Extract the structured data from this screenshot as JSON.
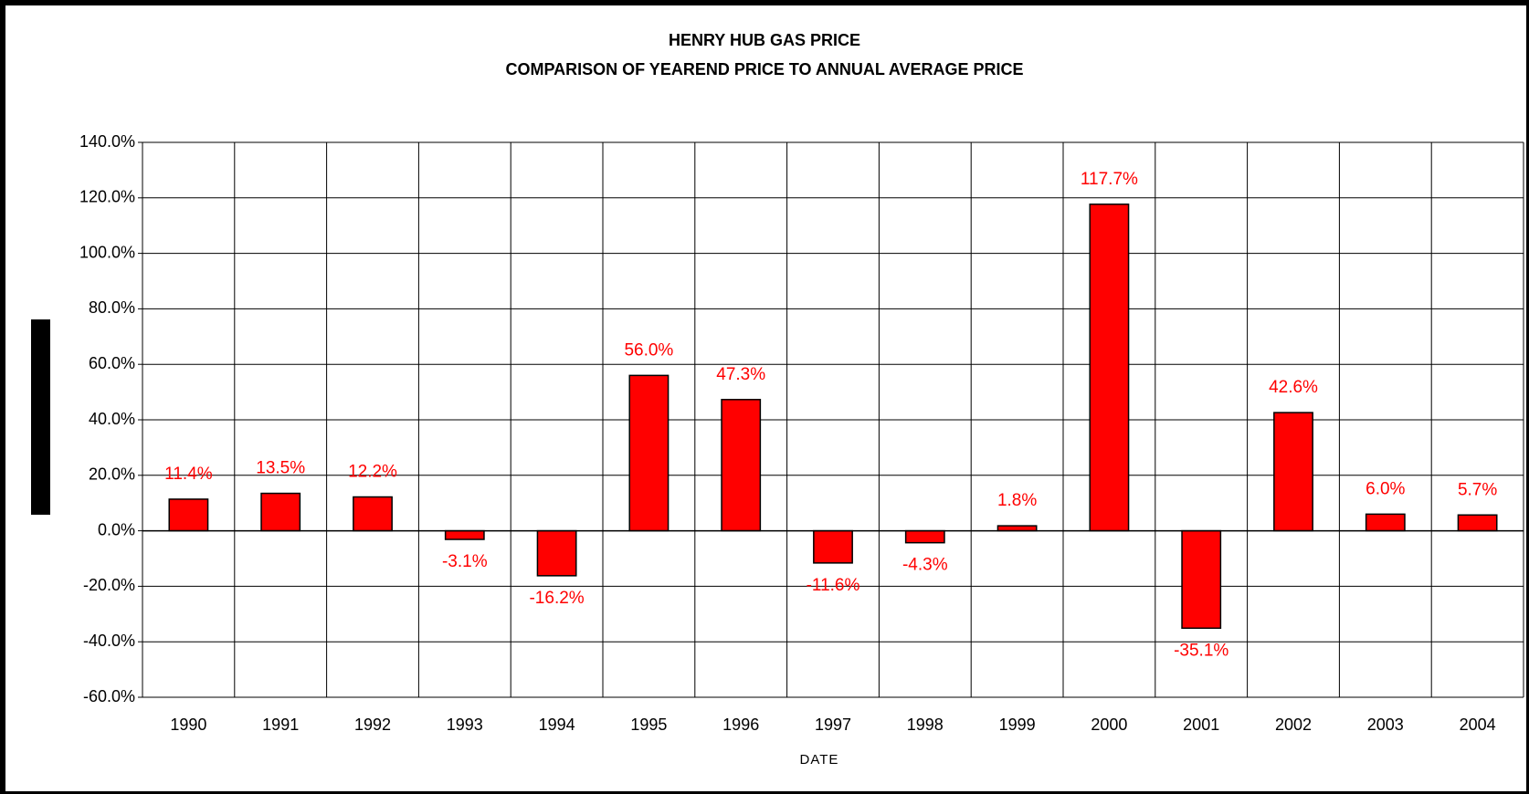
{
  "chart_data": {
    "type": "bar",
    "title": "HENRY HUB GAS PRICE",
    "subtitle": "COMPARISON OF YEAREND PRICE TO ANNUAL AVERAGE PRICE",
    "x_label": "DATE",
    "categories": [
      "1990",
      "1991",
      "1992",
      "1993",
      "1994",
      "1995",
      "1996",
      "1997",
      "1998",
      "1999",
      "2000",
      "2001",
      "2002",
      "2003",
      "2004"
    ],
    "values": [
      11.4,
      13.5,
      12.2,
      -3.1,
      -16.2,
      56.0,
      47.3,
      -11.6,
      -4.3,
      1.8,
      117.7,
      -35.1,
      42.6,
      6.0,
      5.7
    ],
    "value_labels": [
      "11.4%",
      "13.5%",
      "12.2%",
      "-3.1%",
      "-16.2%",
      "56.0%",
      "47.3%",
      "-11.6%",
      "-4.3%",
      "1.8%",
      "117.7%",
      "-35.1%",
      "42.6%",
      "6.0%",
      "5.7%"
    ],
    "color": "#ff0000",
    "ylim": [
      -60,
      140
    ],
    "yticks": [
      {
        "value": -60,
        "label": "-60.0%"
      },
      {
        "value": -40,
        "label": "-40.0%"
      },
      {
        "value": -20,
        "label": "-20.0%"
      },
      {
        "value": 0,
        "label": "0.0%"
      },
      {
        "value": 20,
        "label": "20.0%"
      },
      {
        "value": 40,
        "label": "40.0%"
      },
      {
        "value": 60,
        "label": "60.0%"
      },
      {
        "value": 80,
        "label": "80.0%"
      },
      {
        "value": 100,
        "label": "100.0%"
      },
      {
        "value": 120,
        "label": "120.0%"
      },
      {
        "value": 140,
        "label": "140.0%"
      }
    ],
    "grid": true
  }
}
